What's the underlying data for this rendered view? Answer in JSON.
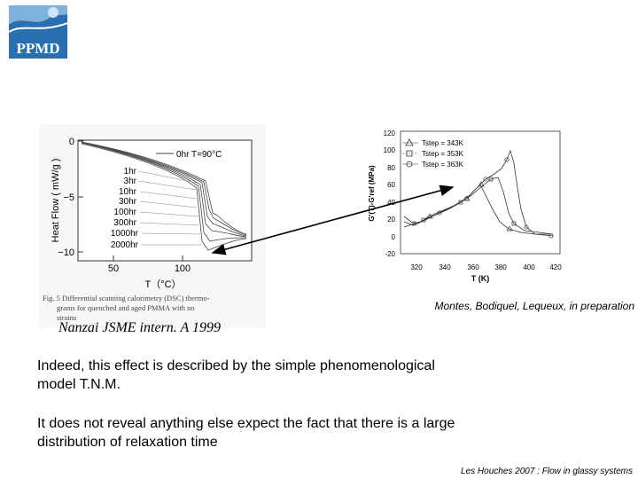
{
  "logo": {
    "text": "PPMD",
    "colors": {
      "blue": "#2a6fb0",
      "sea": "#7fb3dd"
    }
  },
  "dsc_figure": {
    "ylabel": "Heat Flow ( mW/g )",
    "xlabel": "T（°C）",
    "y_ticks": [
      "0",
      "−5",
      "−10"
    ],
    "x_ticks": [
      "50",
      "100"
    ],
    "legend_top": "0hr  T=90°C",
    "aging_labels": [
      "1hr",
      "3hr",
      "10hr",
      "30hr",
      "100hr",
      "300hr",
      "1000hr",
      "2000hr"
    ],
    "caption_line1": "Fig. 5  Differential scanning calorimetry (DSC) thermo-",
    "caption_line2": "grams for quenched and aged PMMA with no",
    "caption_line3": "strains"
  },
  "dma_figure": {
    "ylabel": "G'(T)-G'ref (MPa)",
    "xlabel": "T (K)",
    "y_ticks": [
      "120",
      "100",
      "80",
      "60",
      "40",
      "20",
      "0",
      "-20"
    ],
    "x_ticks": [
      "320",
      "340",
      "360",
      "380",
      "400",
      "420"
    ],
    "legend": [
      {
        "marker": "triangle",
        "text": "Tstep = 343K"
      },
      {
        "marker": "square",
        "text": "Tstep = 353K"
      },
      {
        "marker": "circle",
        "text": "Tstep = 363K"
      }
    ]
  },
  "captions": {
    "right": "Montes, Bodiquel, Lequeux, in preparation",
    "left": "Nanzai  JSME intern. A 1999"
  },
  "text": {
    "para1": "Indeed, this effect is described by the simple phenomenological model T.N.M.",
    "para2": "It does not reveal anything else expect the fact that there is a large distribution of relaxation time"
  },
  "footer": "Les Houches 2007 : Flow in glassy systems"
}
